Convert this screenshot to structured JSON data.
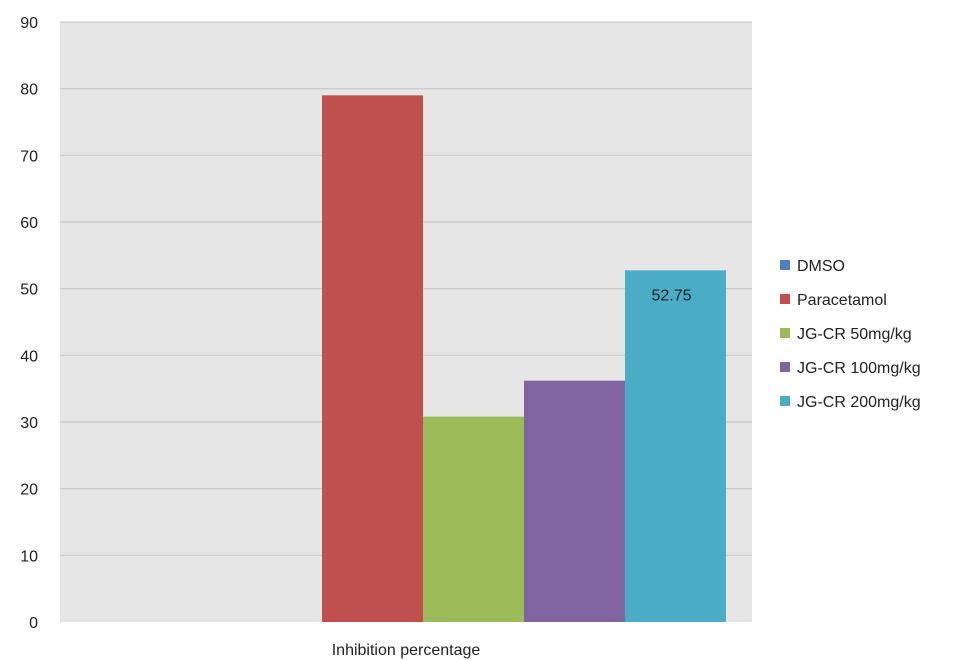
{
  "chart_data": {
    "type": "bar",
    "categories": [
      "Inhibition percentage"
    ],
    "series": [
      {
        "name": "DMSO",
        "values": [
          0
        ],
        "color": "#4f81bd"
      },
      {
        "name": "Paracetamol",
        "values": [
          79
        ],
        "color": "#c0504d"
      },
      {
        "name": "JG-CR 50mg/kg",
        "values": [
          30.8
        ],
        "color": "#9bbb59"
      },
      {
        "name": "JG-CR 100mg/kg",
        "values": [
          36.2
        ],
        "color": "#8064a2"
      },
      {
        "name": "JG-CR 200mg/kg",
        "values": [
          52.75
        ],
        "color": "#4bacc6",
        "data_label": "52.75"
      }
    ],
    "ylim": [
      0,
      90
    ],
    "yticks": [
      0,
      10,
      20,
      30,
      40,
      50,
      60,
      70,
      80,
      90
    ],
    "grid": true,
    "plot_background": "#e6e6e6",
    "gridline_color": "#c9c9c9",
    "legend_position": "right"
  }
}
